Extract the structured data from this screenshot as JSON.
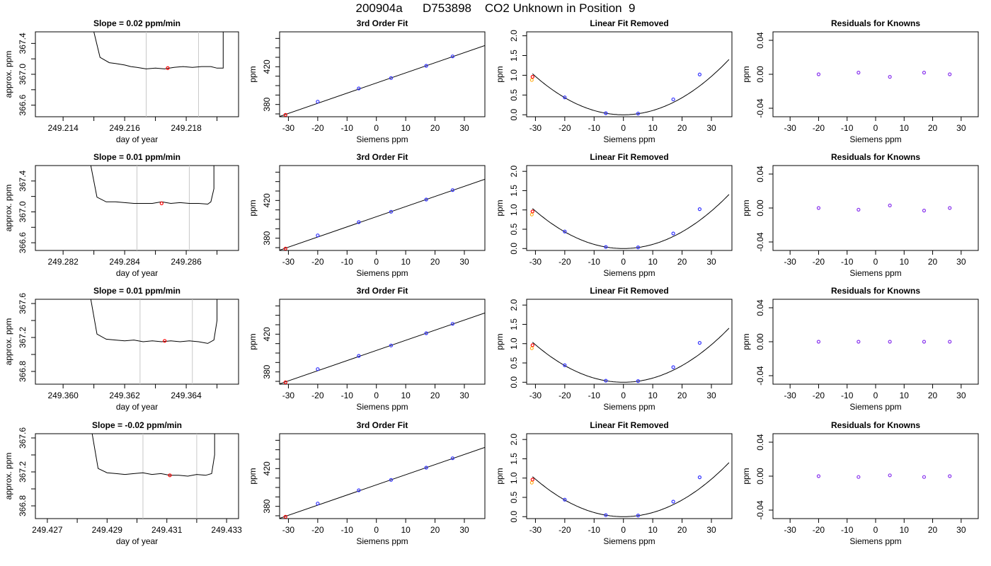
{
  "page_title": "200904a      D753898    CO2 Unknown in Position  9",
  "chart_data": [
    {
      "row": 0,
      "panel": "timeseries",
      "type": "line",
      "title": "Slope =  0.02  ppm/min",
      "xlabel": "day of year",
      "ylabel": "approx. ppm",
      "xlim": [
        249.2131,
        249.2197
      ],
      "ylim": [
        366.45,
        367.55
      ],
      "xticks": [
        249.213,
        249.214,
        249.215,
        249.216,
        249.217,
        249.218,
        249.219
      ],
      "xtick_labels": [
        "",
        "249.214",
        "",
        "249.216",
        "",
        "249.218",
        ""
      ],
      "yticks": [
        366.6,
        366.8,
        367.0,
        367.2,
        367.4
      ],
      "ytick_labels": [
        "366.6",
        "",
        "367.0",
        "",
        "367.4"
      ],
      "vlines": [
        249.2167,
        249.2184
      ],
      "x": [
        249.215,
        249.2152,
        249.2155,
        249.2157,
        249.216,
        249.2162,
        249.2164,
        249.2167,
        249.217,
        249.2173,
        249.2176,
        249.2179,
        249.2182,
        249.2185,
        249.2188,
        249.219,
        249.2192,
        249.2192
      ],
      "y": [
        367.55,
        367.22,
        367.15,
        367.14,
        367.12,
        367.1,
        367.09,
        367.07,
        367.08,
        367.07,
        367.09,
        367.1,
        367.09,
        367.1,
        367.1,
        367.08,
        367.08,
        367.55
      ],
      "highlight": {
        "x": 249.2174,
        "y": 367.08
      }
    },
    {
      "row": 0,
      "panel": "fit",
      "type": "line",
      "title": "3rd Order Fit",
      "xlabel": "Siemens ppm",
      "ylabel": "ppm",
      "xlim": [
        -33,
        37
      ],
      "ylim": [
        367,
        457
      ],
      "xticks": [
        -30,
        -20,
        -10,
        0,
        10,
        20,
        30
      ],
      "yticks": [
        370,
        380,
        390,
        400,
        410,
        420,
        430,
        440,
        450
      ],
      "ytick_labels": [
        "",
        "380",
        "",
        "",
        "",
        "420",
        "",
        "",
        ""
      ],
      "points_x": [
        -31,
        -20,
        -6,
        5,
        17,
        26
      ],
      "points_y": [
        369,
        383,
        397,
        408,
        421,
        431
      ],
      "line_x": [
        -33,
        37
      ],
      "line_y": [
        367.3,
        442.5
      ]
    },
    {
      "row": 0,
      "panel": "removed",
      "type": "line",
      "title": "Linear Fit Removed",
      "xlabel": "Siemens ppm",
      "ylabel": "ppm",
      "xlim": [
        -33,
        37
      ],
      "ylim": [
        -0.05,
        2.1
      ],
      "xticks": [
        -30,
        -20,
        -10,
        0,
        10,
        20,
        30
      ],
      "yticks": [
        0.0,
        0.5,
        1.0,
        1.5,
        2.0
      ],
      "ytick_labels": [
        "0.0",
        "0.5",
        "1.0",
        "1.5",
        "2.0"
      ],
      "points_x": [
        -31,
        -20,
        -6,
        5,
        17,
        26
      ],
      "points_y": [
        0.96,
        0.44,
        0.04,
        0.03,
        0.39,
        1.02
      ],
      "curve": {
        "type": "quadratic",
        "coef": 0.00108,
        "xmin": -31,
        "xmax": 36
      }
    },
    {
      "row": 0,
      "panel": "residuals",
      "type": "scatter",
      "title": "Residuals for Knowns",
      "xlabel": "Siemens ppm",
      "ylabel": "ppm",
      "xlim": [
        -36,
        36
      ],
      "ylim": [
        -0.05,
        0.05
      ],
      "xticks": [
        -30,
        -20,
        -10,
        0,
        10,
        20,
        30
      ],
      "yticks": [
        -0.04,
        0.0,
        0.04
      ],
      "ytick_labels": [
        "-0.04",
        "0.00",
        "0.04"
      ],
      "points_x": [
        -20,
        -6,
        5,
        17,
        26
      ],
      "points_y": [
        0.0,
        0.002,
        -0.003,
        0.002,
        0.0
      ]
    },
    {
      "row": 1,
      "panel": "timeseries",
      "type": "line",
      "title": "Slope =  0.01  ppm/min",
      "xlabel": "day of year",
      "ylabel": "approx. ppm",
      "xlim": [
        249.2811,
        249.2877
      ],
      "ylim": [
        366.5,
        367.6
      ],
      "xticks": [
        249.281,
        249.282,
        249.283,
        249.284,
        249.285,
        249.286,
        249.287
      ],
      "xtick_labels": [
        "",
        "249.282",
        "",
        "249.284",
        "",
        "249.286",
        ""
      ],
      "yticks": [
        366.6,
        366.8,
        367.0,
        367.2,
        367.4
      ],
      "ytick_labels": [
        "366.6",
        "",
        "367.0",
        "",
        "367.4"
      ],
      "vlines": [
        249.2844,
        249.2861
      ],
      "x": [
        249.2829,
        249.2831,
        249.2834,
        249.2837,
        249.284,
        249.2843,
        249.2846,
        249.2849,
        249.2852,
        249.2855,
        249.2858,
        249.2861,
        249.2864,
        249.2867,
        249.2868,
        249.2869,
        249.2869
      ],
      "y": [
        367.6,
        367.19,
        367.13,
        367.13,
        367.12,
        367.11,
        367.11,
        367.11,
        367.13,
        367.11,
        367.12,
        367.11,
        367.11,
        367.1,
        367.13,
        367.3,
        367.6
      ],
      "highlight": {
        "x": 249.2852,
        "y": 367.11
      }
    },
    {
      "row": 1,
      "panel": "fit",
      "type": "line",
      "title": "3rd Order Fit",
      "xlabel": "Siemens ppm",
      "ylabel": "ppm",
      "xlim": [
        -33,
        37
      ],
      "ylim": [
        367,
        457
      ],
      "xticks": [
        -30,
        -20,
        -10,
        0,
        10,
        20,
        30
      ],
      "yticks": [
        370,
        380,
        390,
        400,
        410,
        420,
        430,
        440,
        450
      ],
      "ytick_labels": [
        "",
        "380",
        "",
        "",
        "",
        "420",
        "",
        "",
        ""
      ],
      "points_x": [
        -31,
        -20,
        -6,
        5,
        17,
        26
      ],
      "points_y": [
        369,
        383,
        397,
        408,
        421,
        431
      ],
      "line_x": [
        -33,
        37
      ],
      "line_y": [
        367.3,
        442.5
      ]
    },
    {
      "row": 1,
      "panel": "removed",
      "type": "line",
      "title": "Linear Fit Removed",
      "xlabel": "Siemens ppm",
      "ylabel": "ppm",
      "xlim": [
        -33,
        37
      ],
      "ylim": [
        -0.05,
        2.15
      ],
      "xticks": [
        -30,
        -20,
        -10,
        0,
        10,
        20,
        30
      ],
      "yticks": [
        0.0,
        0.5,
        1.0,
        1.5,
        2.0
      ],
      "ytick_labels": [
        "0.0",
        "0.5",
        "1.0",
        "1.5",
        "2.0"
      ],
      "points_x": [
        -31,
        -20,
        -6,
        5,
        17,
        26
      ],
      "points_y": [
        0.96,
        0.44,
        0.04,
        0.03,
        0.39,
        1.02
      ],
      "curve": {
        "type": "quadratic",
        "coef": 0.00108,
        "xmin": -31,
        "xmax": 36
      }
    },
    {
      "row": 1,
      "panel": "residuals",
      "type": "scatter",
      "title": "Residuals for Knowns",
      "xlabel": "Siemens ppm",
      "ylabel": "ppm",
      "xlim": [
        -36,
        36
      ],
      "ylim": [
        -0.05,
        0.05
      ],
      "xticks": [
        -30,
        -20,
        -10,
        0,
        10,
        20,
        30
      ],
      "yticks": [
        -0.04,
        0.0,
        0.04
      ],
      "ytick_labels": [
        "-0.04",
        "0.00",
        "0.04"
      ],
      "points_x": [
        -20,
        -6,
        5,
        17,
        26
      ],
      "points_y": [
        0.0,
        -0.002,
        0.003,
        -0.003,
        0.0
      ]
    },
    {
      "row": 2,
      "panel": "timeseries",
      "type": "line",
      "title": "Slope =  0.01  ppm/min",
      "xlabel": "day of year",
      "ylabel": "approx. ppm",
      "xlim": [
        249.3591,
        249.3657
      ],
      "ylim": [
        366.65,
        367.65
      ],
      "xticks": [
        249.359,
        249.36,
        249.361,
        249.362,
        249.363,
        249.364,
        249.365
      ],
      "xtick_labels": [
        "",
        "249.360",
        "",
        "249.362",
        "",
        "249.364",
        ""
      ],
      "yticks": [
        366.8,
        367.0,
        367.2,
        367.4,
        367.6
      ],
      "ytick_labels": [
        "366.8",
        "",
        "367.2",
        "",
        "367.6"
      ],
      "vlines": [
        249.3625,
        249.3642
      ],
      "x": [
        249.3609,
        249.3611,
        249.3614,
        249.3617,
        249.362,
        249.3623,
        249.3626,
        249.3629,
        249.3632,
        249.3635,
        249.3638,
        249.3641,
        249.3644,
        249.3647,
        249.3649,
        249.365,
        249.365
      ],
      "y": [
        367.65,
        367.24,
        367.18,
        367.17,
        367.16,
        367.17,
        367.15,
        367.16,
        367.15,
        367.16,
        367.15,
        367.16,
        367.15,
        367.13,
        367.17,
        367.4,
        367.65
      ],
      "highlight": {
        "x": 249.3633,
        "y": 367.16
      }
    },
    {
      "row": 2,
      "panel": "fit",
      "type": "line",
      "title": "3rd Order Fit",
      "xlabel": "Siemens ppm",
      "ylabel": "ppm",
      "xlim": [
        -33,
        37
      ],
      "ylim": [
        367,
        457
      ],
      "xticks": [
        -30,
        -20,
        -10,
        0,
        10,
        20,
        30
      ],
      "yticks": [
        370,
        380,
        390,
        400,
        410,
        420,
        430,
        440,
        450
      ],
      "ytick_labels": [
        "",
        "380",
        "",
        "",
        "",
        "420",
        "",
        "",
        ""
      ],
      "points_x": [
        -31,
        -20,
        -6,
        5,
        17,
        26
      ],
      "points_y": [
        369,
        383,
        397,
        408,
        421,
        431
      ],
      "line_x": [
        -33,
        37
      ],
      "line_y": [
        367.3,
        442.5
      ]
    },
    {
      "row": 2,
      "panel": "removed",
      "type": "line",
      "title": "Linear Fit Removed",
      "xlabel": "Siemens ppm",
      "ylabel": "ppm",
      "xlim": [
        -33,
        37
      ],
      "ylim": [
        -0.05,
        2.15
      ],
      "xticks": [
        -30,
        -20,
        -10,
        0,
        10,
        20,
        30
      ],
      "yticks": [
        0.0,
        0.5,
        1.0,
        1.5,
        2.0
      ],
      "ytick_labels": [
        "0.0",
        "0.5",
        "1.0",
        "1.5",
        "2.0"
      ],
      "points_x": [
        -31,
        -20,
        -6,
        5,
        17,
        26
      ],
      "points_y": [
        0.96,
        0.44,
        0.04,
        0.03,
        0.39,
        1.02
      ],
      "curve": {
        "type": "quadratic",
        "coef": 0.00108,
        "xmin": -31,
        "xmax": 36
      }
    },
    {
      "row": 2,
      "panel": "residuals",
      "type": "scatter",
      "title": "Residuals for Knowns",
      "xlabel": "Siemens ppm",
      "ylabel": "ppm",
      "xlim": [
        -36,
        36
      ],
      "ylim": [
        -0.05,
        0.05
      ],
      "xticks": [
        -30,
        -20,
        -10,
        0,
        10,
        20,
        30
      ],
      "yticks": [
        -0.04,
        0.0,
        0.04
      ],
      "ytick_labels": [
        "-0.04",
        "0.00",
        "0.04"
      ],
      "points_x": [
        -20,
        -6,
        5,
        17,
        26
      ],
      "points_y": [
        0.0,
        0.0,
        0.0,
        0.0,
        0.0
      ]
    },
    {
      "row": 3,
      "panel": "timeseries",
      "type": "line",
      "title": "Slope =  -0.02  ppm/min",
      "xlabel": "day of year",
      "ylabel": "approx. ppm",
      "xlim": [
        249.4266,
        249.4334
      ],
      "ylim": [
        366.65,
        367.65
      ],
      "xticks": [
        249.427,
        249.428,
        249.429,
        249.43,
        249.431,
        249.432,
        249.433
      ],
      "xtick_labels": [
        "249.427",
        "",
        "249.429",
        "",
        "249.431",
        "",
        "249.433"
      ],
      "yticks": [
        366.8,
        367.0,
        367.2,
        367.4,
        367.6
      ],
      "ytick_labels": [
        "366.8",
        "",
        "367.2",
        "",
        "367.6"
      ],
      "vlines": [
        249.4302,
        249.432
      ],
      "x": [
        249.4285,
        249.4287,
        249.429,
        249.4293,
        249.4296,
        249.4299,
        249.4302,
        249.4305,
        249.4308,
        249.4311,
        249.4314,
        249.4317,
        249.432,
        249.4323,
        249.4325,
        249.4326,
        249.4326
      ],
      "y": [
        367.65,
        367.24,
        367.19,
        367.18,
        367.17,
        367.18,
        367.19,
        367.17,
        367.18,
        367.16,
        367.16,
        367.15,
        367.17,
        367.16,
        367.18,
        367.4,
        367.65
      ],
      "highlight": {
        "x": 249.4311,
        "y": 367.16
      }
    },
    {
      "row": 3,
      "panel": "fit",
      "type": "line",
      "title": "3rd Order Fit",
      "xlabel": "Siemens ppm",
      "ylabel": "ppm",
      "xlim": [
        -33,
        37
      ],
      "ylim": [
        367,
        457
      ],
      "xticks": [
        -30,
        -20,
        -10,
        0,
        10,
        20,
        30
      ],
      "yticks": [
        370,
        380,
        390,
        400,
        410,
        420,
        430,
        440,
        450
      ],
      "ytick_labels": [
        "",
        "380",
        "",
        "",
        "",
        "420",
        "",
        "",
        ""
      ],
      "points_x": [
        -31,
        -20,
        -6,
        5,
        17,
        26
      ],
      "points_y": [
        369,
        383,
        397,
        408,
        421,
        431
      ],
      "line_x": [
        -33,
        37
      ],
      "line_y": [
        367.3,
        442.5
      ]
    },
    {
      "row": 3,
      "panel": "removed",
      "type": "line",
      "title": "Linear Fit Removed",
      "xlabel": "Siemens ppm",
      "ylabel": "ppm",
      "xlim": [
        -33,
        37
      ],
      "ylim": [
        -0.05,
        2.15
      ],
      "xticks": [
        -30,
        -20,
        -10,
        0,
        10,
        20,
        30
      ],
      "yticks": [
        0.0,
        0.5,
        1.0,
        1.5,
        2.0
      ],
      "ytick_labels": [
        "0.0",
        "0.5",
        "1.0",
        "1.5",
        "2.0"
      ],
      "points_x": [
        -31,
        -20,
        -6,
        5,
        17,
        26
      ],
      "points_y": [
        0.96,
        0.44,
        0.04,
        0.03,
        0.39,
        1.02
      ],
      "curve": {
        "type": "quadratic",
        "coef": 0.00108,
        "xmin": -31,
        "xmax": 36
      }
    },
    {
      "row": 3,
      "panel": "residuals",
      "type": "scatter",
      "title": "Residuals for Knowns",
      "xlabel": "Siemens ppm",
      "ylabel": "ppm",
      "xlim": [
        -36,
        36
      ],
      "ylim": [
        -0.05,
        0.05
      ],
      "xticks": [
        -30,
        -20,
        -10,
        0,
        10,
        20,
        30
      ],
      "yticks": [
        -0.04,
        0.0,
        0.04
      ],
      "ytick_labels": [
        "-0.04",
        "0.00",
        "0.04"
      ],
      "points_x": [
        -20,
        -6,
        5,
        17,
        26
      ],
      "points_y": [
        0.0,
        -0.001,
        0.001,
        -0.001,
        0.0
      ]
    }
  ],
  "colors": {
    "axis": "#000000",
    "line": "#000000",
    "vline": "#c8c8c8",
    "known_point": "#3333ff",
    "unknown_point": "#ff0000",
    "alt_point": "#ffa500",
    "residual": "#8833ee"
  }
}
